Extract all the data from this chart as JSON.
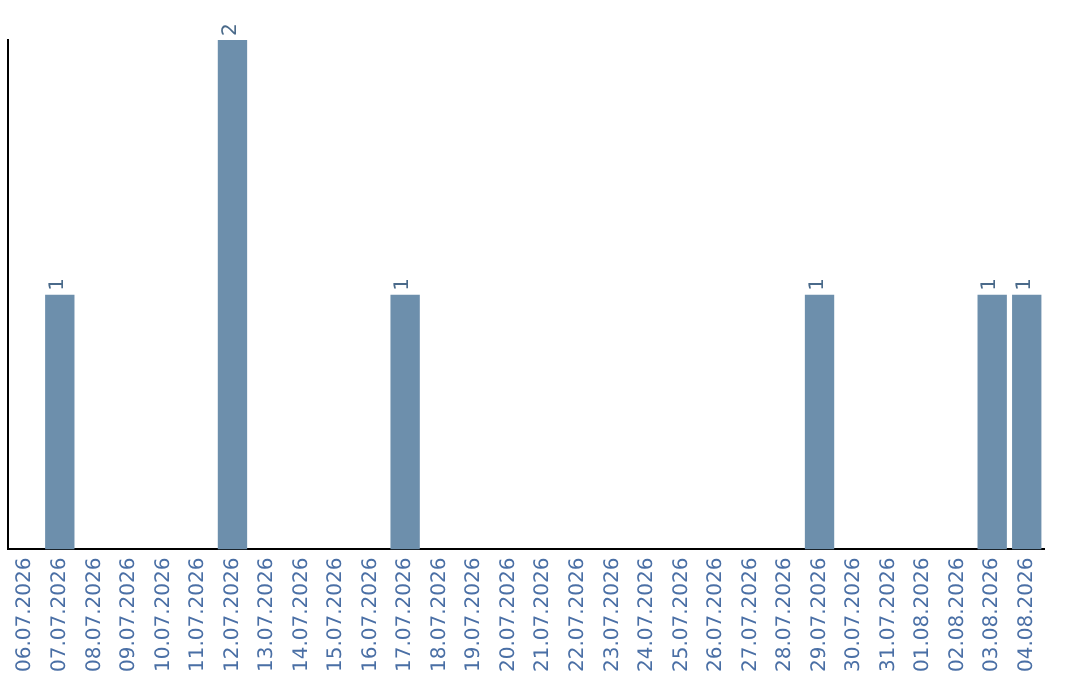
{
  "chart_data": {
    "type": "bar",
    "categories": [
      "06.07.2026",
      "07.07.2026",
      "08.07.2026",
      "09.07.2026",
      "10.07.2026",
      "11.07.2026",
      "12.07.2026",
      "13.07.2026",
      "14.07.2026",
      "15.07.2026",
      "16.07.2026",
      "17.07.2026",
      "18.07.2026",
      "19.07.2026",
      "20.07.2026",
      "21.07.2026",
      "22.07.2026",
      "23.07.2026",
      "24.07.2026",
      "25.07.2026",
      "26.07.2026",
      "27.07.2026",
      "28.07.2026",
      "29.07.2026",
      "30.07.2026",
      "31.07.2026",
      "01.08.2026",
      "02.08.2026",
      "03.08.2026",
      "04.08.2026"
    ],
    "values": [
      0,
      1,
      0,
      0,
      0,
      0,
      2,
      0,
      0,
      0,
      0,
      1,
      0,
      0,
      0,
      0,
      0,
      0,
      0,
      0,
      0,
      0,
      0,
      1,
      0,
      0,
      0,
      0,
      1,
      1
    ],
    "color": "#6d8fac",
    "ylim": [
      0,
      2
    ],
    "value_labels": [
      null,
      "1",
      null,
      null,
      null,
      null,
      "2",
      null,
      null,
      null,
      null,
      "1",
      null,
      null,
      null,
      null,
      null,
      null,
      null,
      null,
      null,
      null,
      null,
      "1",
      null,
      null,
      null,
      null,
      "1",
      "1"
    ],
    "grid": false,
    "legend": false,
    "tick_labels": "x"
  }
}
